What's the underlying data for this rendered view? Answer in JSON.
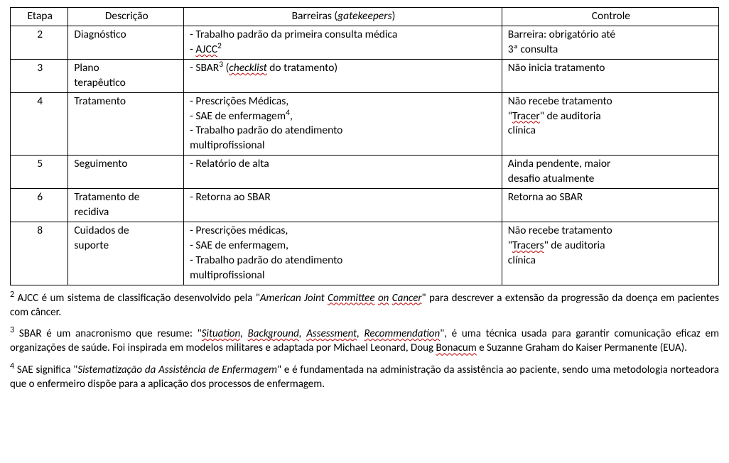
{
  "table": {
    "headers": {
      "etapa": "Etapa",
      "descricao": "Descrição",
      "barreiras_pre": "Barreiras (",
      "barreiras_ital": "gatekeepers",
      "barreiras_post": ")",
      "controle": "Controle"
    },
    "row2": {
      "etapa": "2",
      "desc": "Diagnóstico",
      "barr_l1": "- Trabalho padrão da primeira consulta médica",
      "barr_l2_pre": "- ",
      "barr_l2_wavy": "AJCC",
      "barr_l2_sup": "2",
      "ctrl_l1": "Barreira: obrigatório até",
      "ctrl_l2": "3ª consulta"
    },
    "row3": {
      "etapa": "3",
      "desc_l1": "Plano",
      "desc_l2": "terapêutico",
      "barr_pre": "- SBAR",
      "barr_sup": "3",
      "barr_open": " (",
      "barr_ital": "checklist",
      "barr_post": " do tratamento)",
      "ctrl": "Não inicia tratamento"
    },
    "row4": {
      "etapa": "4",
      "desc": "Tratamento",
      "barr_l1": "- Prescrições Médicas,",
      "barr_l2_pre": "- SAE de enfermagem",
      "barr_l2_sup": "4",
      "barr_l2_post": ",",
      "barr_l3": "- Trabalho padrão do atendimento",
      "barr_l4": "multiprofissional",
      "ctrl_l1": "Não recebe tratamento",
      "ctrl_l2_q1": "\"",
      "ctrl_l2_wavy": "Tracer",
      "ctrl_l2_q2": "\" de auditoria",
      "ctrl_l3": "clínica"
    },
    "row5": {
      "etapa": "5",
      "desc": "Seguimento",
      "barr": "- Relatório de alta",
      "ctrl_l1": "Ainda pendente, maior",
      "ctrl_l2": "desafio atualmente"
    },
    "row6": {
      "etapa": "6",
      "desc_l1": "Tratamento de",
      "desc_l2": "recidiva",
      "barr": "- Retorna ao SBAR",
      "ctrl": "Retorna ao SBAR"
    },
    "row8": {
      "etapa": "8",
      "desc_l1": "Cuidados de",
      "desc_l2": "suporte",
      "barr_l1": "- Prescrições médicas,",
      "barr_l2": "- SAE de enfermagem,",
      "barr_l3": "- Trabalho padrão do atendimento",
      "barr_l4": "multiprofissional",
      "ctrl_l1": "Não recebe tratamento",
      "ctrl_l2_q1": "\"",
      "ctrl_l2_wavy": "Tracers",
      "ctrl_l2_q2": "\" de auditoria",
      "ctrl_l3": "clínica"
    }
  },
  "footnotes": {
    "fn2": {
      "sup": "2",
      "t1": " AJCC é um sistema de classificação desenvolvido pela \"",
      "it1": "American Joint ",
      "wit1": "Committee",
      "it2": " ",
      "wit2": "on",
      "it3": " ",
      "wit3": "Cancer",
      "t2": "\" para descrever a extensão da progressão da doença em pacientes com câncer."
    },
    "fn3": {
      "sup": "3",
      "t1": " SBAR é um anacronismo que resume: \"",
      "wit1": "Situation",
      "it_sep1": ", ",
      "wit2": "Background",
      "it_sep2": ", ",
      "wit3": "Assessment",
      "it_sep3": ", ",
      "wit4": "Recommendation",
      "t2": "\", é uma técnica usada para garantir comunicação eficaz em organizações de saúde. Foi inspirada em modelos militares e adaptada por Michael Leonard, Doug ",
      "w1": "Bonacum",
      "t3": " e Suzanne Graham do Kaiser Permanente (EUA)."
    },
    "fn4": {
      "sup": "4",
      "t1": " SAE significa \"",
      "it1": "Sistematização da Assistência de Enfermagem",
      "t2": "\" e é fundamentada na administração da assistência ao paciente, sendo uma metodologia norteadora que o enfermeiro dispõe para a aplicação dos processos de enfermagem."
    }
  }
}
